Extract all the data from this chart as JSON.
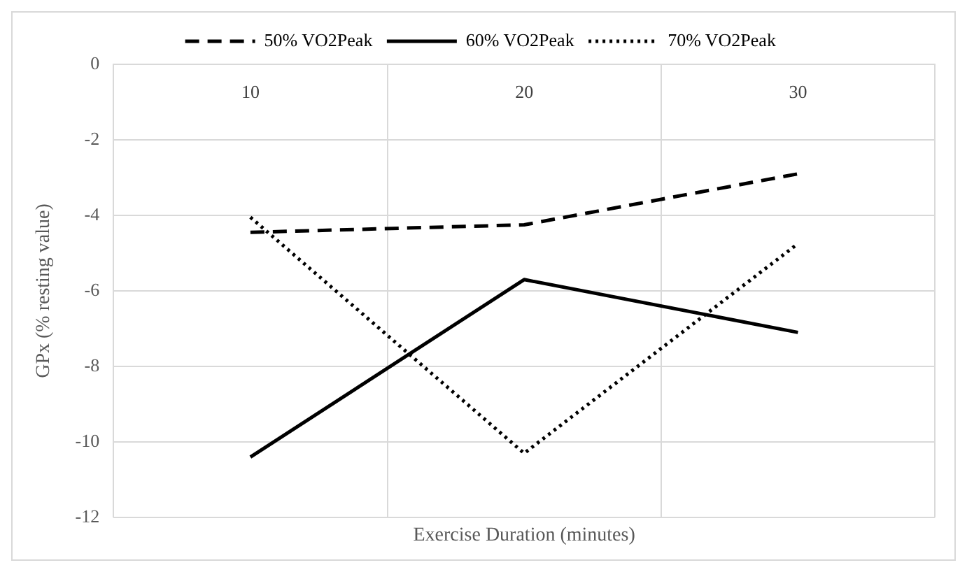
{
  "chart_data": {
    "type": "line",
    "xlabel": "Exercise Duration (minutes)",
    "ylabel": "GPx (% resting value)",
    "categories": [
      "10",
      "20",
      "30"
    ],
    "series": [
      {
        "name": "50% VO2Peak",
        "color": "#000000",
        "line_style": "dashed",
        "values": [
          -4.45,
          -4.25,
          -2.9
        ]
      },
      {
        "name": "60% VO2Peak",
        "color": "#000000",
        "line_style": "solid",
        "values": [
          -10.4,
          -5.7,
          -7.1
        ]
      },
      {
        "name": "70% VO2Peak",
        "color": "#000000",
        "line_style": "dotted",
        "values": [
          -4.05,
          -10.3,
          -4.75
        ]
      }
    ],
    "ylim": [
      -12,
      0
    ],
    "yticks": [
      -12,
      -10,
      -8,
      -6,
      -4,
      -2,
      0
    ],
    "grid": true,
    "legend": "top",
    "marker": "none"
  }
}
